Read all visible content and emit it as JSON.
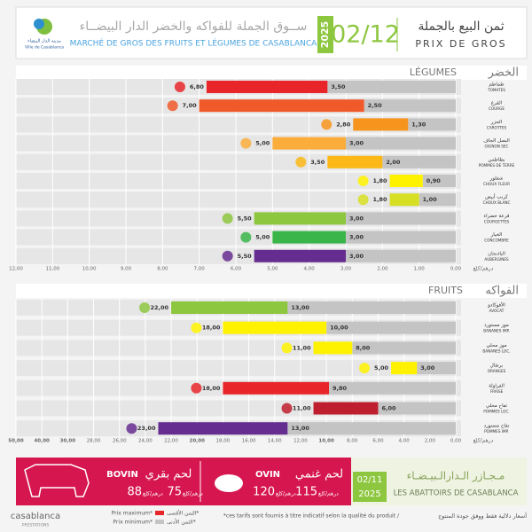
{
  "header": {
    "city_ar": "مدينة الدار البيضاء",
    "city_fr": "Ville de Casablanca",
    "market_ar": "ســوق الجملة للفواكه والخضر الدار البيضــاء",
    "market_fr": "MARCHÉ DE GROS DES FRUITS ET LÉGUMES DE CASABLANCA",
    "year": "2025",
    "date": "02/12",
    "title_ar": "ثمن البيع بالجملة",
    "title_fr": "PRIX DE GROS"
  },
  "chart_data": [
    {
      "type": "bar",
      "title": "LÉGUMES",
      "title_ar": "الخضر",
      "xlabel": "درهم/كلغ",
      "categories": [
        "TOMATES",
        "COURGE",
        "CAROTTES",
        "OIGNON SEC",
        "POMMES DE TERRE",
        "CHOUX FLEUR",
        "CHOUX BLANC",
        "COURGETTES",
        "CONCOMBRE",
        "AUBERGINES"
      ],
      "categories_ar": [
        "طماطم",
        "القرع",
        "الجزر",
        "البصل الجاف",
        "بطاطس",
        "شفلور",
        "كرنب أبيض",
        "قرعة خضراء",
        "الخيار",
        "الباذنجان"
      ],
      "series": [
        {
          "values": [
            6.8,
            7,
            2.8,
            5,
            3.5,
            1.8,
            1.8,
            5.5,
            5,
            5.5
          ],
          "value_labels": [
            "6,80",
            "7,00",
            "2,80",
            "5,00",
            "3,50",
            "1,80",
            "1,80",
            "5,50",
            "5,00",
            "5,50"
          ],
          "colors": [
            "#e8262a",
            "#f0592a",
            "#f7941d",
            "#fbad3c",
            "#fbb817",
            "#fff200",
            "#d7df23",
            "#8dc63f",
            "#3ab54a",
            "#662d91"
          ]
        },
        {
          "values": [
            3.5,
            2.5,
            1.3,
            3,
            2,
            0.9,
            1,
            3,
            3,
            3
          ],
          "value_labels": [
            "3,50",
            "2,50",
            "1,30",
            "3,00",
            "2,00",
            "0,90",
            "1,00",
            "3,00",
            "3,00",
            "3,00"
          ],
          "color": "#c4c4c4"
        }
      ],
      "xlim": [
        12,
        0
      ],
      "xticks": [
        {
          "value": 12,
          "label": "12,00"
        },
        {
          "value": 11,
          "label": "11,00"
        },
        {
          "value": 10,
          "label": "10,00"
        },
        {
          "value": 9,
          "label": "9,00"
        },
        {
          "value": 8,
          "label": "8,00"
        },
        {
          "value": 7,
          "label": "7,00"
        },
        {
          "value": 6,
          "label": "6,00"
        },
        {
          "value": 5,
          "label": "5,00"
        },
        {
          "value": 4,
          "label": "4,00"
        },
        {
          "value": 3,
          "label": "3,00"
        },
        {
          "value": 2,
          "label": "2,00"
        },
        {
          "value": 1,
          "label": "1,00"
        },
        {
          "value": 0,
          "label": "0,00"
        }
      ],
      "grid": true
    },
    {
      "type": "bar",
      "title": "FRUITS",
      "title_ar": "الفواكه",
      "xlabel": "درهم/كلغ",
      "categories": [
        "AVOCAT",
        "BANANES IMP.",
        "BANANES LOC.",
        "ORANGES",
        "FRAISE",
        "POMMES LOC.",
        "POMMES IMP."
      ],
      "categories_ar": [
        "الأفوكادو",
        "موز مستورد",
        "موز محلي",
        "برتقال",
        "الفراولة",
        "تفاح محلي",
        "تفاح مستورد"
      ],
      "series": [
        {
          "values": [
            22,
            18,
            11,
            5,
            18,
            11,
            23
          ],
          "value_labels": [
            "22,00",
            "18,00",
            "11,00",
            "5,00",
            "18,00",
            "11,00",
            "23,00"
          ],
          "colors": [
            "#8dc63f",
            "#fff200",
            "#fff200",
            "#fff200",
            "#e8262a",
            "#be1e2d",
            "#662d91"
          ]
        },
        {
          "values": [
            13,
            10,
            8,
            3,
            9.8,
            6,
            13
          ],
          "value_labels": [
            "13,00",
            "10,00",
            "8,00",
            "3,00",
            "9,80",
            "6,00",
            "13,00"
          ],
          "color": "#c4c4c4"
        }
      ],
      "xlim": [
        50,
        0
      ],
      "xticks": [
        {
          "value": 50,
          "label": "50,00"
        },
        {
          "value": 40,
          "label": "40,00"
        },
        {
          "value": 30,
          "label": "30,00"
        },
        {
          "value": 28,
          "label": "28,00"
        },
        {
          "value": 26,
          "label": "26,00"
        },
        {
          "value": 24,
          "label": "24,00"
        },
        {
          "value": 22,
          "label": "22,00"
        },
        {
          "value": 20,
          "label": "20,00"
        },
        {
          "value": 18,
          "label": "18,00"
        },
        {
          "value": 16,
          "label": "16,00"
        },
        {
          "value": 14,
          "label": "14,00"
        },
        {
          "value": 12,
          "label": "12,00"
        },
        {
          "value": 10,
          "label": "10,00"
        },
        {
          "value": 8,
          "label": "8,00"
        },
        {
          "value": 6,
          "label": "6,00"
        },
        {
          "value": 4,
          "label": "4,00"
        },
        {
          "value": 2,
          "label": "2,00"
        },
        {
          "value": 0,
          "label": "0,00"
        }
      ],
      "grid": true
    }
  ],
  "meat": {
    "unit": "درهم/كلغ",
    "bovin": {
      "name": "BOVIN",
      "name_ar": "لحم بقري",
      "prices": [
        75,
        88
      ]
    },
    "ovin": {
      "name": "OVIN",
      "name_ar": "لحم غنمي",
      "prices": [
        115,
        120
      ]
    },
    "date": "02/11",
    "year": "2025",
    "source_ar": "مـجـازر الـدارالـبيـضـاء",
    "source_fr": "LES ABATTOIRS DE CASABLANCA"
  },
  "footer": {
    "brand": "casablanca",
    "brand_sub": "PRESTATIONS",
    "legend": [
      {
        "fr": "Prix maximum*",
        "ar": "الثمن الأقصى*"
      },
      {
        "fr": "Prix minimum*",
        "ar": "الثمن الأدنى*"
      }
    ],
    "note_fr": "*ces tarifs sont fournis à titre indicatif selon la qualité du produit /",
    "note_ar": "أسعار دلالية فقط ووفق جودة المنتوج"
  }
}
